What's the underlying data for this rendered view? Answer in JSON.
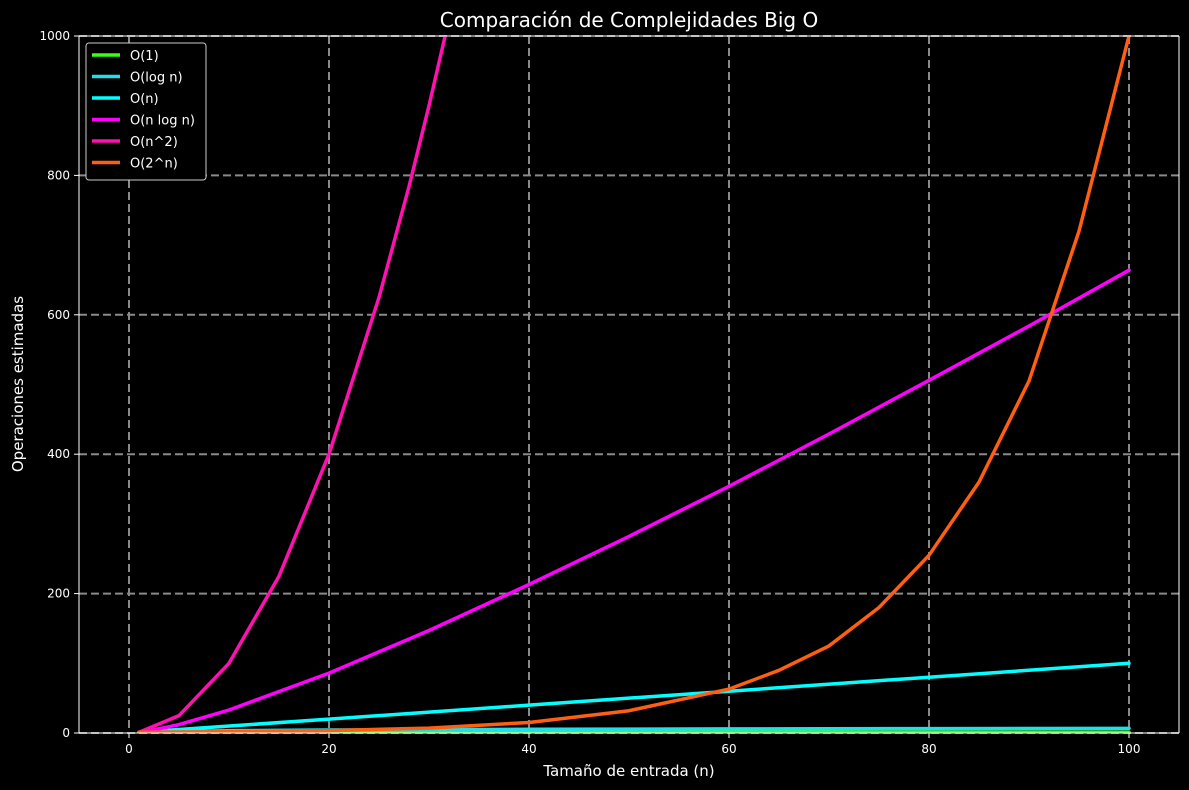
{
  "chart_data": {
    "type": "line",
    "title": "Comparación de Complejidades Big O",
    "xlabel": "Tamaño de entrada (n)",
    "ylabel": "Operaciones estimadas",
    "xlim": [
      -5,
      105
    ],
    "ylim": [
      0,
      1000
    ],
    "x_ticks": [
      0,
      20,
      40,
      60,
      80,
      100
    ],
    "y_ticks": [
      0,
      200,
      400,
      600,
      800,
      1000
    ],
    "grid": true,
    "legend_position": "top-left",
    "background": "#000000",
    "series": [
      {
        "name": "O(1)",
        "color": "#39ff14",
        "x": [
          1,
          100
        ],
        "y": [
          1,
          1
        ]
      },
      {
        "name": "O(log n)",
        "color": "#1fe0e8",
        "x": [
          1,
          2,
          5,
          10,
          20,
          40,
          60,
          80,
          100
        ],
        "y": [
          0,
          1,
          2.3,
          3.3,
          4.3,
          5.3,
          5.9,
          6.3,
          6.6
        ]
      },
      {
        "name": "O(n)",
        "color": "#00ffff",
        "x": [
          1,
          20,
          40,
          60,
          80,
          100
        ],
        "y": [
          1,
          20,
          40,
          60,
          80,
          100
        ]
      },
      {
        "name": "O(n log n)",
        "color": "#ff00ff",
        "x": [
          1,
          5,
          10,
          20,
          30,
          40,
          50,
          60,
          70,
          80,
          90,
          100
        ],
        "y": [
          0,
          12,
          33,
          86,
          147,
          213,
          282,
          354,
          429,
          506,
          584,
          664
        ]
      },
      {
        "name": "O(n^2)",
        "color": "#ff10b0",
        "x": [
          1,
          5,
          10,
          15,
          20,
          25,
          28,
          30,
          32
        ],
        "y": [
          1,
          25,
          100,
          225,
          400,
          625,
          784,
          900,
          1024
        ]
      },
      {
        "name": "O(2^n)",
        "color": "#ff5f10",
        "x": [
          1,
          10,
          20,
          30,
          40,
          50,
          60,
          65,
          70,
          75,
          80,
          85,
          90,
          95,
          100
        ],
        "y": [
          1,
          2,
          3.4,
          7,
          15,
          32,
          63,
          90,
          125,
          180,
          255,
          360,
          505,
          720,
          1000
        ]
      }
    ]
  }
}
